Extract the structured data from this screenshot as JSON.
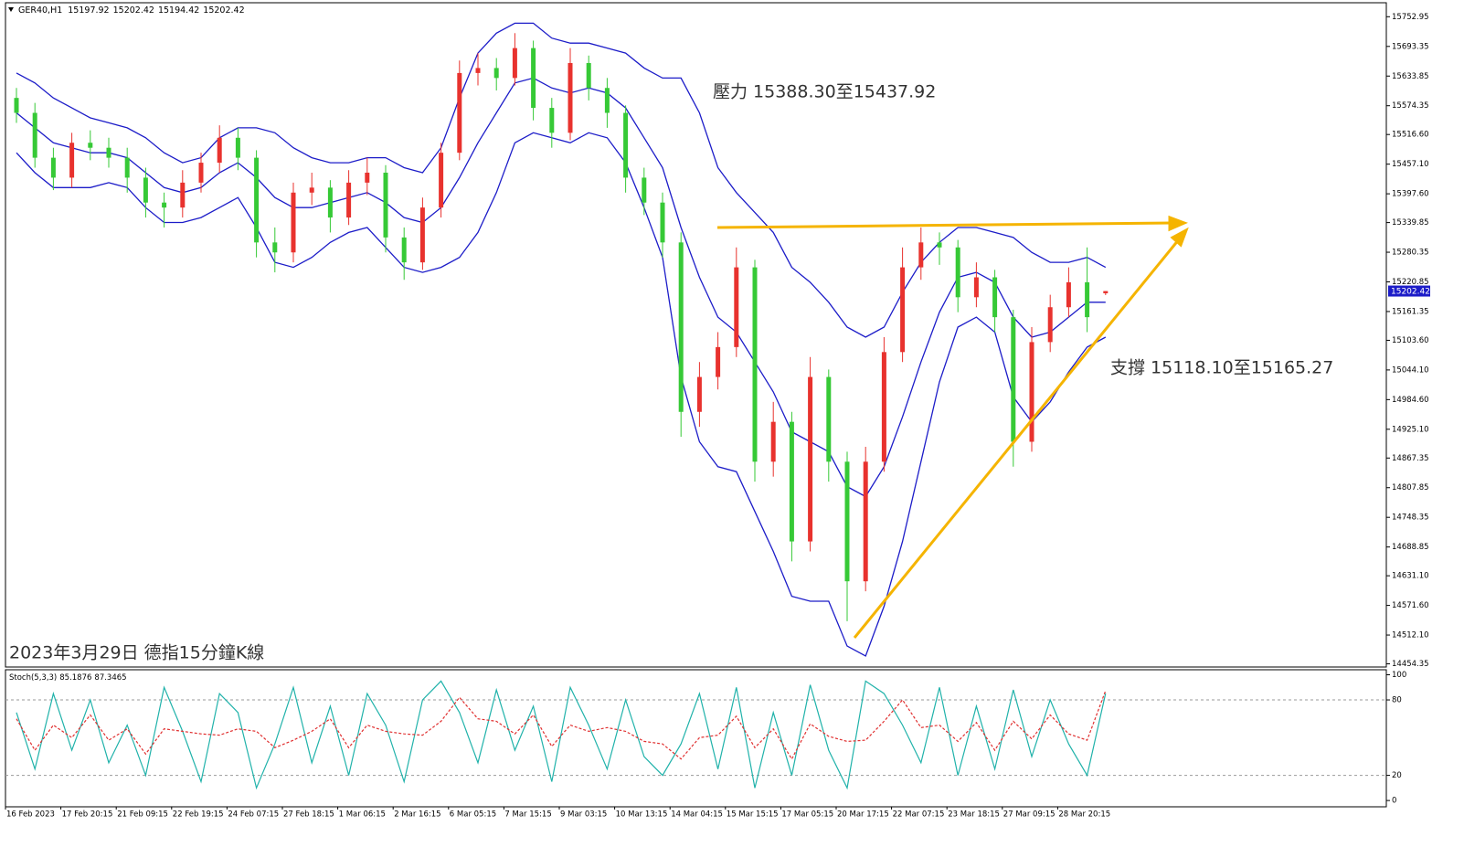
{
  "chart_data": [
    {
      "type": "candlestick",
      "title": "GER40,H1",
      "categories": [
        "16 Feb 2023",
        null,
        null,
        "17 Feb 20:15",
        null,
        null,
        "21 Feb 09:15",
        null,
        null,
        "22 Feb 19:15",
        null,
        null,
        "24 Feb 07:15",
        null,
        null,
        "27 Feb 18:15",
        null,
        null,
        "1 Mar 06:15",
        null,
        null,
        "2 Mar 16:15",
        null,
        null,
        "6 Mar 05:15",
        null,
        null,
        "7 Mar 15:15",
        null,
        null,
        "9 Mar 03:15",
        null,
        null,
        "10 Mar 13:15",
        null,
        null,
        "14 Mar 04:15",
        null,
        null,
        "15 Mar 15:15",
        null,
        null,
        "17 Mar 05:15",
        null,
        null,
        "20 Mar 17:15",
        null,
        null,
        "22 Mar 07:15",
        null,
        null,
        "23 Mar 18:15",
        null,
        null,
        "27 Mar 09:15",
        null,
        null,
        "28 Mar 20:15",
        null,
        null
      ],
      "open": [
        15590,
        15560,
        15470,
        15430,
        15500,
        15490,
        15470,
        15430,
        15380,
        15370,
        15420,
        15460,
        15510,
        15470,
        15300,
        15280,
        15400,
        15410,
        15350,
        15420,
        15440,
        15310,
        15260,
        15370,
        15480,
        15640,
        15650,
        15630,
        15690,
        15570,
        15520,
        15660,
        15610,
        15560,
        15430,
        15380,
        15300,
        14960,
        15030,
        15090,
        15250,
        14860,
        14940,
        14700,
        15030,
        14860,
        14620,
        14860,
        15080,
        15250,
        15300,
        15290,
        15190,
        15230,
        15150,
        14900,
        15100,
        15170,
        15220,
        15197.92
      ],
      "high": [
        15610,
        15580,
        15490,
        15520,
        15525,
        15510,
        15490,
        15450,
        15400,
        15445,
        15480,
        15535,
        15530,
        15485,
        15330,
        15420,
        15440,
        15425,
        15445,
        15470,
        15455,
        15330,
        15390,
        15500,
        15665,
        15680,
        15670,
        15720,
        15705,
        15590,
        15690,
        15675,
        15630,
        15575,
        15450,
        15400,
        15320,
        15060,
        15120,
        15290,
        15265,
        14980,
        14960,
        15070,
        15045,
        14880,
        14890,
        15110,
        15290,
        15330,
        15320,
        15305,
        15260,
        15245,
        15165,
        15130,
        15195,
        15250,
        15290,
        15202.42
      ],
      "low": [
        15540,
        15450,
        15405,
        15410,
        15465,
        15450,
        15400,
        15350,
        15330,
        15350,
        15400,
        15440,
        15445,
        15270,
        15240,
        15260,
        15375,
        15320,
        15335,
        15395,
        15280,
        15225,
        15245,
        15350,
        15465,
        15615,
        15605,
        15615,
        15545,
        15490,
        15505,
        15585,
        15530,
        15400,
        15355,
        15270,
        14910,
        14930,
        15005,
        15070,
        14820,
        14830,
        14660,
        14680,
        14820,
        14540,
        14600,
        14840,
        15060,
        15225,
        15255,
        15160,
        15170,
        15120,
        14850,
        14880,
        15080,
        15150,
        15120,
        15194.42
      ],
      "close": [
        15560,
        15470,
        15430,
        15500,
        15490,
        15470,
        15430,
        15380,
        15370,
        15420,
        15460,
        15510,
        15470,
        15300,
        15280,
        15400,
        15410,
        15350,
        15420,
        15440,
        15310,
        15260,
        15370,
        15480,
        15640,
        15650,
        15630,
        15690,
        15570,
        15520,
        15660,
        15610,
        15560,
        15430,
        15380,
        15300,
        14960,
        15030,
        15090,
        15250,
        14860,
        14940,
        14700,
        15030,
        14860,
        14620,
        14860,
        15080,
        15250,
        15300,
        15290,
        15190,
        15230,
        15150,
        14900,
        15100,
        15170,
        15220,
        15150,
        15202.42
      ],
      "up_color": "#e8322e",
      "down_color": "#36c936",
      "series": [
        {
          "color": "#1c1cc8",
          "values": [
            15640,
            15620,
            15590,
            15570,
            15550,
            15540,
            15530,
            15510,
            15480,
            15460,
            15470,
            15510,
            15530,
            15530,
            15520,
            15490,
            15470,
            15460,
            15460,
            15470,
            15470,
            15450,
            15440,
            15490,
            15590,
            15680,
            15720,
            15740,
            15740,
            15710,
            15700,
            15700,
            15690,
            15680,
            15650,
            15630,
            15630,
            15560,
            15450,
            15400,
            15360,
            15320,
            15250,
            15220,
            15180,
            15130,
            15110,
            15130,
            15200,
            15260,
            15300,
            15330,
            15330,
            15320,
            15310,
            15280,
            15260,
            15260,
            15270,
            15250
          ]
        },
        {
          "color": "#1c1cc8",
          "values": [
            15560,
            15530,
            15500,
            15490,
            15480,
            15480,
            15470,
            15440,
            15410,
            15400,
            15410,
            15440,
            15460,
            15430,
            15390,
            15370,
            15370,
            15380,
            15390,
            15400,
            15380,
            15350,
            15340,
            15370,
            15430,
            15500,
            15560,
            15620,
            15630,
            15610,
            15600,
            15610,
            15600,
            15570,
            15510,
            15450,
            15330,
            15230,
            15150,
            15120,
            15060,
            15000,
            14920,
            14900,
            14880,
            14810,
            14790,
            14850,
            14950,
            15060,
            15160,
            15230,
            15240,
            15220,
            15150,
            15110,
            15120,
            15150,
            15180,
            15180
          ]
        },
        {
          "color": "#1c1cc8",
          "values": [
            15480,
            15440,
            15410,
            15410,
            15410,
            15420,
            15410,
            15370,
            15340,
            15340,
            15350,
            15370,
            15390,
            15330,
            15260,
            15250,
            15270,
            15300,
            15320,
            15330,
            15290,
            15250,
            15240,
            15250,
            15270,
            15320,
            15400,
            15500,
            15520,
            15510,
            15500,
            15520,
            15510,
            15460,
            15370,
            15270,
            15030,
            14900,
            14850,
            14840,
            14760,
            14680,
            14590,
            14580,
            14580,
            14490,
            14470,
            14570,
            14700,
            14860,
            15020,
            15130,
            15150,
            15120,
            14990,
            14940,
            14980,
            15040,
            15090,
            15110
          ]
        }
      ],
      "ylim": [
        14448,
        15781
      ],
      "yticks": [
        15752.95,
        15693.35,
        15633.85,
        15574.35,
        {
          "value": 15516.6,
          "label": "15516.60"
        },
        {
          "value": 15457.1,
          "label": "15457.10"
        },
        {
          "value": 15397.6,
          "label": "15397.60"
        },
        15339.85,
        15280.35,
        15220.85,
        15161.35,
        {
          "value": 15103.6,
          "label": "15103.60"
        },
        {
          "value": 15044.1,
          "label": "15044.10"
        },
        {
          "value": 14984.6,
          "label": "14984.60"
        },
        {
          "value": 14925.1,
          "label": "14925.10"
        },
        14867.35,
        14807.85,
        14748.35,
        14688.85,
        {
          "value": 14631.1,
          "label": "14631.10"
        },
        {
          "value": 14571.6,
          "label": "14571.60"
        },
        {
          "value": 14512.1,
          "label": "14512.10"
        },
        14454.35
      ],
      "annotations": [
        "壓力 15388.30至15437.92",
        "支撐 15118.10至15165.27",
        "2023年3月29日 德指15分鐘K線"
      ]
    },
    {
      "type": "line",
      "title": "Stoch(5,3,3)",
      "series": [
        {
          "color": "#20b2aa",
          "values": [
            70,
            25,
            85,
            40,
            80,
            30,
            60,
            20,
            90,
            55,
            15,
            85,
            70,
            10,
            45,
            90,
            30,
            75,
            20,
            85,
            60,
            15,
            80,
            95,
            70,
            30,
            88,
            40,
            75,
            15,
            90,
            60,
            25,
            80,
            35,
            20,
            45,
            85,
            25,
            90,
            10,
            70,
            20,
            92,
            40,
            10,
            95,
            85,
            60,
            30,
            90,
            20,
            75,
            25,
            88,
            35,
            80,
            45,
            20,
            85.1876
          ]
        },
        {
          "color": "#e03030",
          "dashed": true,
          "values": [
            65,
            40,
            60,
            50,
            68,
            48,
            57,
            37,
            57,
            55,
            53,
            52,
            57,
            55,
            42,
            48,
            55,
            65,
            42,
            60,
            55,
            53,
            52,
            63,
            82,
            65,
            63,
            53,
            68,
            43,
            60,
            55,
            58,
            55,
            47,
            45,
            33,
            50,
            52,
            67,
            42,
            57,
            33,
            61,
            51,
            47,
            48,
            63,
            80,
            58,
            60,
            47,
            62,
            40,
            63,
            49,
            68,
            53,
            48,
            87.3465
          ]
        }
      ],
      "ylim": [
        -5,
        104
      ],
      "yticks": [
        100,
        80,
        20,
        0
      ]
    }
  ]
}
